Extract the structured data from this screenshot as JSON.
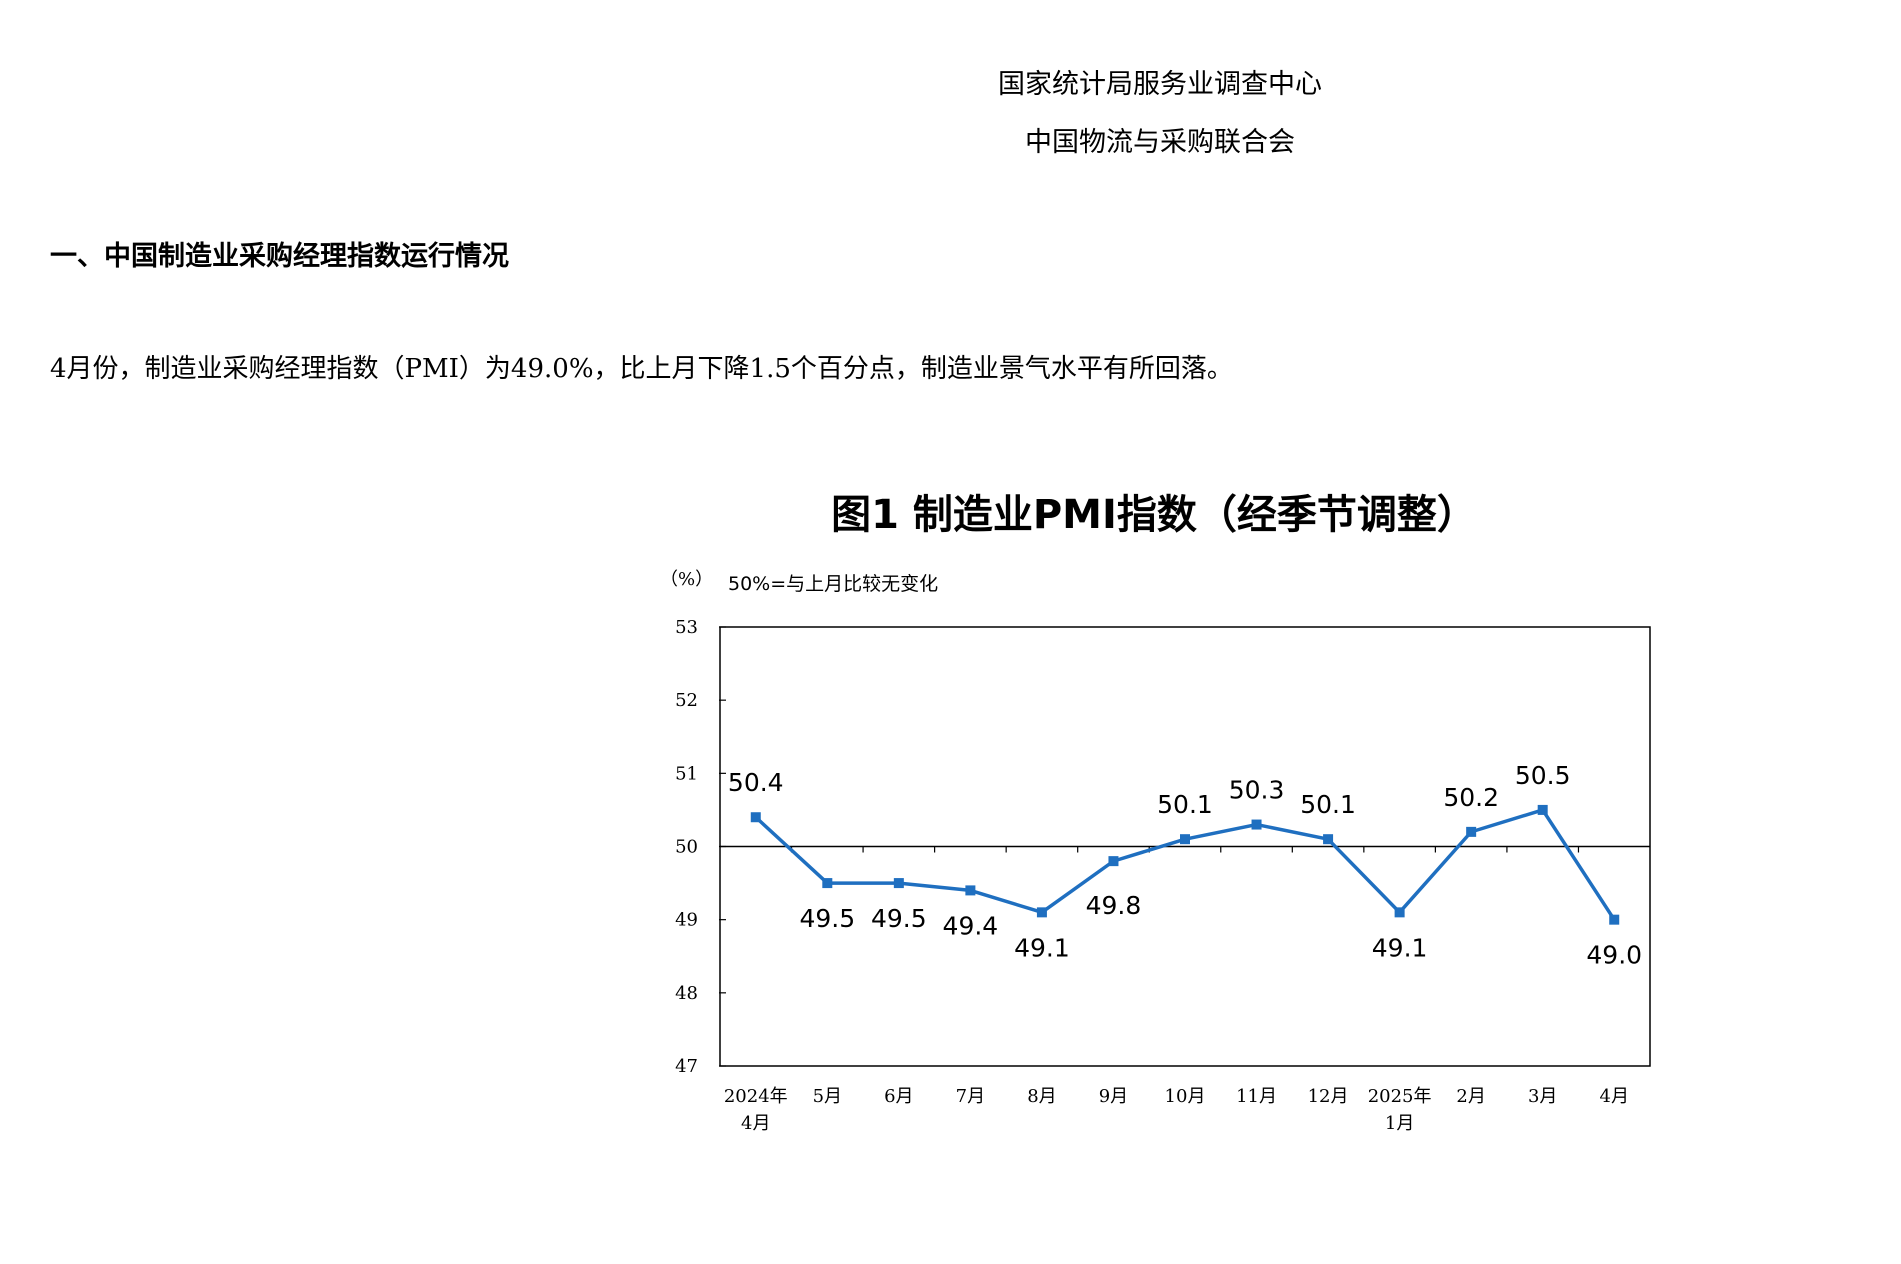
{
  "header": {
    "org_line1": "国家统计局服务业调查中心",
    "org_line2": "中国物流与采购联合会"
  },
  "section": {
    "title": "一、中国制造业采购经理指数运行情况",
    "paragraph": "4月份，制造业采购经理指数（PMI）为49.0%，比上月下降1.5个百分点，制造业景气水平有所回落。"
  },
  "chart_data": {
    "type": "line",
    "title": "图1  制造业PMI指数（经季节调整）",
    "unit_label": "（%）",
    "note": "50%=与上月比较无变化",
    "categories": [
      [
        "2024年",
        "4月"
      ],
      [
        "5月"
      ],
      [
        "6月"
      ],
      [
        "7月"
      ],
      [
        "8月"
      ],
      [
        "9月"
      ],
      [
        "10月"
      ],
      [
        "11月"
      ],
      [
        "12月"
      ],
      [
        "2025年",
        "1月"
      ],
      [
        "2月"
      ],
      [
        "3月"
      ],
      [
        "4月"
      ]
    ],
    "series": [
      {
        "values": [
          50.4,
          49.5,
          49.5,
          49.4,
          49.1,
          49.8,
          50.1,
          50.3,
          50.1,
          49.1,
          50.2,
          50.5,
          49.0
        ]
      }
    ],
    "data_labels": [
      "50.4",
      "49.5",
      "49.5",
      "49.4",
      "49.1",
      "49.8",
      "50.1",
      "50.3",
      "50.1",
      "49.1",
      "50.2",
      "50.5",
      "49.0"
    ],
    "yticks": [
      47,
      48,
      49,
      50,
      51,
      52,
      53
    ],
    "ylim": [
      47,
      53
    ],
    "reference_line": 50,
    "line_color": "#1f6fc0",
    "grid": false
  }
}
